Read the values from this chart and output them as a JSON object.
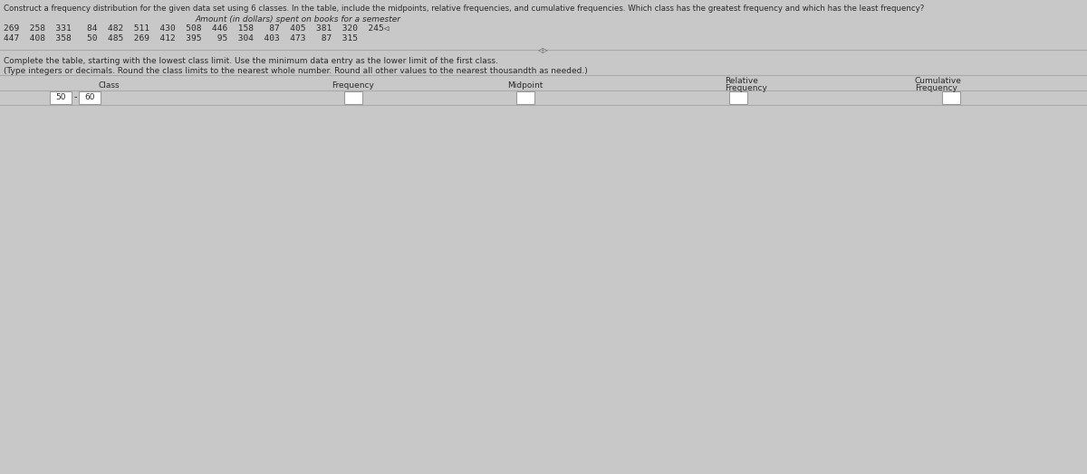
{
  "title_line1": "Construct a frequency distribution for the given data set using 6 classes. In the table, include the midpoints, relative frequencies, and cumulative frequencies. Which class has the greatest frequency and which has the least frequency?",
  "subtitle": "Amount (in dollars) spent on books for a semester",
  "data_row1": "269  258  331   84  482  511  430  508  446  158   87  405  381  320  245◁",
  "data_row2": "447  408  358   50  485  269  412  395   95  304  403  473   87  315",
  "instructions_line1": "Complete the table, starting with the lowest class limit. Use the minimum data entry as the lower limit of the first class.",
  "instructions_line2": "(Type integers or decimals. Round the class limits to the nearest whole number. Round all other values to the nearest thousandth as needed.)",
  "col_headers": [
    "Class",
    "Frequency",
    "Midpoint",
    "Relative\nFrequency",
    "Cumulative\nFrequency"
  ],
  "first_class_left": "50",
  "first_class_right": "60",
  "bg_color": "#c8c8c8",
  "box_fill": "#ffffff",
  "separator_color": "#999999",
  "text_color": "#2a2a2a",
  "line_color": "#aaaaaa"
}
